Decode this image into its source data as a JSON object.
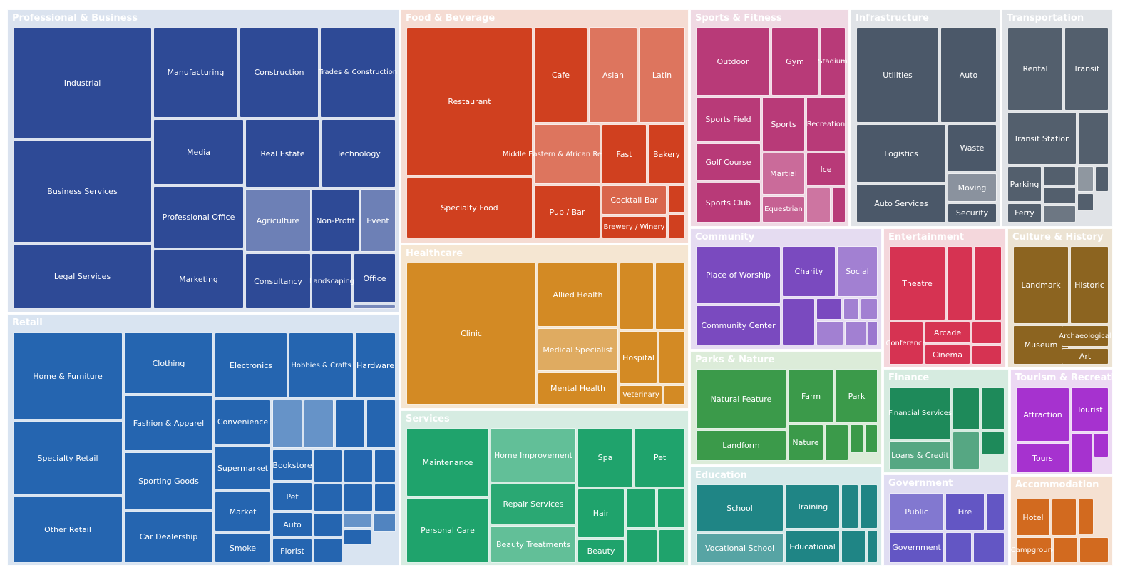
{
  "chart_data": {
    "type": "treemap",
    "title": "",
    "groups": [
      {
        "name": "Professional & Business",
        "color": "#2e4a96",
        "tint": "#dbe3ef",
        "items": [
          "Industrial",
          "Business Services",
          "Legal Services",
          "Manufacturing",
          "Construction",
          "Trades & Construction",
          "Media",
          "Real Estate",
          "Technology",
          "Professional Office",
          "Agriculture",
          "Non-Profit",
          "Event",
          "Marketing",
          "Consultancy",
          "Landscaping",
          "Office",
          "",
          ""
        ]
      },
      {
        "name": "Retail",
        "color": "#2565b0",
        "tint": "#d9e4f1",
        "items": [
          "Home & Furniture",
          "Specialty Retail",
          "Other Retail",
          "Clothing",
          "Fashion & Apparel",
          "Sporting Goods",
          "Car Dealership",
          "Electronics",
          "Hobbies & Crafts",
          "Hardware",
          "Convenience",
          "",
          "",
          "",
          "",
          "Supermarket",
          "Bookstore",
          "",
          "",
          "",
          "Market",
          "Pet",
          "",
          "",
          "",
          "Auto",
          "",
          "",
          "",
          "Smoke",
          "Florist",
          "",
          ""
        ]
      },
      {
        "name": "Food & Beverage",
        "color": "#d0401f",
        "tint": "#f5dcd3",
        "items": [
          "Restaurant",
          "Specialty Food",
          "Cafe",
          "Asian",
          "Latin",
          "Middle Eastern & African Restaurant",
          "Fast",
          "Bakery",
          "Pub / Bar",
          "Cocktail Bar",
          "",
          "Brewery / Winery",
          ""
        ]
      },
      {
        "name": "Healthcare",
        "color": "#d38a24",
        "tint": "#f5e6d2",
        "items": [
          "Clinic",
          "Allied Health",
          "",
          "",
          "Medical Specialist",
          "Hospital",
          "",
          "Mental Health",
          "Veterinary",
          ""
        ]
      },
      {
        "name": "Services",
        "color": "#1fa36c",
        "tint": "#d6ece2",
        "items": [
          "Maintenance",
          "Personal Care",
          "Home Improvement",
          "Repair Services",
          "Beauty Treatments",
          "Spa",
          "Pet",
          "Hair",
          "",
          "",
          "Beauty",
          "",
          ""
        ]
      },
      {
        "name": "Sports & Fitness",
        "color": "#b83a78",
        "tint": "#efd9e3",
        "items": [
          "Outdoor",
          "Gym",
          "Stadium",
          "Sports Field",
          "Sports",
          "Recreation",
          "Golf Course",
          "Martial",
          "Ice",
          "Sports Club",
          "Equestrian",
          "",
          ""
        ]
      },
      {
        "name": "Infrastructure",
        "color": "#4b5869",
        "tint": "#e0e3e7",
        "items": [
          "Utilities",
          "Auto",
          "Logistics",
          "Waste",
          "Moving",
          "Auto Services",
          "Security"
        ]
      },
      {
        "name": "Transportation",
        "color": "#535f6d",
        "tint": "#e0e3e7",
        "items": [
          "Rental",
          "Transit",
          "Transit Station",
          "",
          "Parking",
          "",
          "",
          "",
          "Ferry",
          "",
          "",
          ""
        ]
      },
      {
        "name": "Community",
        "color": "#7a4abf",
        "tint": "#e5dcf1",
        "items": [
          "Place of Worship",
          "Charity",
          "Social",
          "Community Center",
          "",
          "",
          "",
          "",
          "",
          "",
          ""
        ]
      },
      {
        "name": "Entertainment",
        "color": "#d63352",
        "tint": "#f4d7dc",
        "items": [
          "Theatre",
          "",
          "",
          "Conference",
          "Arcade",
          "",
          "Cinema",
          ""
        ]
      },
      {
        "name": "Culture & History",
        "color": "#8c6420",
        "tint": "#ece3d3",
        "items": [
          "Landmark",
          "Historic",
          "Museum",
          "Archaeological",
          "Art"
        ]
      },
      {
        "name": "Parks & Nature",
        "color": "#3b9a4a",
        "tint": "#dcecd9",
        "items": [
          "Natural Feature",
          "Farm",
          "Park",
          "Landform",
          "Nature",
          "",
          "",
          ""
        ]
      },
      {
        "name": "Finance",
        "color": "#1e8a5a",
        "tint": "#d6ebe0",
        "items": [
          "Financial Services",
          "",
          "",
          "Loans & Credit",
          "",
          ""
        ]
      },
      {
        "name": "Tourism & Recreation",
        "color": "#a632cf",
        "tint": "#ecd9f3",
        "items": [
          "Attraction",
          "Tourist",
          "",
          "Tours",
          ""
        ]
      },
      {
        "name": "Education",
        "color": "#1f8585",
        "tint": "#d5e9e9",
        "items": [
          "School",
          "Training",
          "",
          "",
          "Vocational School",
          "Educational",
          "",
          ""
        ]
      },
      {
        "name": "Government",
        "color": "#6356c4",
        "tint": "#e0ddf2",
        "items": [
          "Public",
          "Fire",
          "",
          "Government",
          "",
          ""
        ]
      },
      {
        "name": "Accommodation",
        "color": "#d26a1f",
        "tint": "#f5e1d2",
        "items": [
          "Hotel",
          "",
          "",
          "Campground",
          "",
          ""
        ]
      }
    ]
  }
}
